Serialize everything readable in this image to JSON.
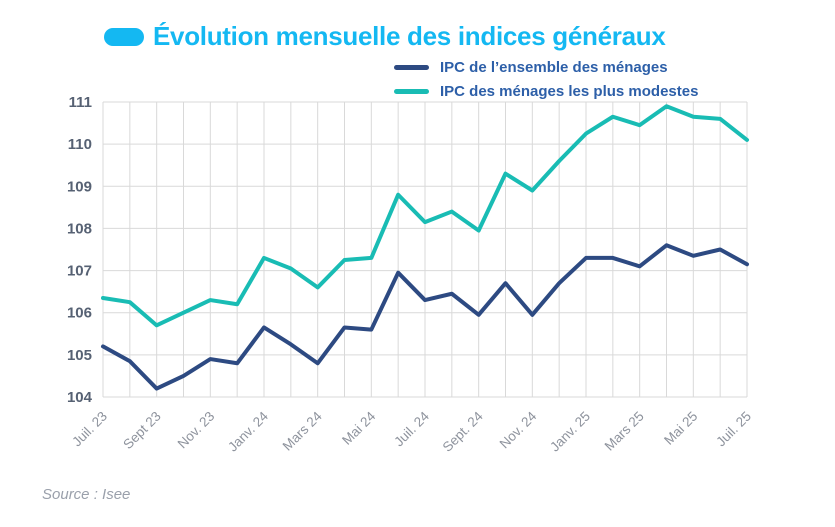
{
  "title": {
    "text": "Évolution mensuelle des indices généraux",
    "color": "#14b8f2"
  },
  "legend": {
    "text_color": "#2d5fa8",
    "items": [
      {
        "label": "IPC de l’ensemble des ménages",
        "color": "#2d4a82"
      },
      {
        "label": "IPC des ménages les plus modestes",
        "color": "#19bcb4"
      }
    ]
  },
  "source": "Source : Isee",
  "colors": {
    "grid": "#d9d9d9",
    "y_label": "#566173",
    "x_label": "#8e939d",
    "source": "#9aa0ab",
    "accent_cyan": "#14b8f2"
  },
  "chart_data": {
    "type": "line",
    "title": "Évolution mensuelle des indices généraux",
    "xlabel": "",
    "ylabel": "",
    "ylim": [
      104,
      111
    ],
    "y_ticks": [
      104,
      105,
      106,
      107,
      108,
      109,
      110,
      111
    ],
    "grid": true,
    "legend_position": "top-right",
    "points_per_tick": 2,
    "x_tick_labels": [
      "Juil. 23",
      "Sept 23",
      "Nov. 23",
      "Janv. 24",
      "Mars 24",
      "Mai 24",
      "Juil. 24",
      "Sept. 24",
      "Nov. 24",
      "Janv. 25",
      "Mars 25",
      "Mai 25",
      "Juil. 25"
    ],
    "series": [
      {
        "name": "IPC de l’ensemble des ménages",
        "color": "#2d4a82",
        "values": [
          105.2,
          104.85,
          104.2,
          104.5,
          104.9,
          104.8,
          105.65,
          105.25,
          104.8,
          105.65,
          105.6,
          106.95,
          106.3,
          106.45,
          105.95,
          106.7,
          105.95,
          106.7,
          107.3,
          107.3,
          107.1,
          107.6,
          107.35,
          107.5,
          107.15
        ]
      },
      {
        "name": "IPC des ménages les plus modestes",
        "color": "#19bcb4",
        "values": [
          106.35,
          106.25,
          105.7,
          106.0,
          106.3,
          106.2,
          107.3,
          107.05,
          106.6,
          107.25,
          107.3,
          108.8,
          108.15,
          108.4,
          107.95,
          109.3,
          108.9,
          109.6,
          110.25,
          110.65,
          110.45,
          110.9,
          110.65,
          110.6,
          110.1
        ]
      }
    ]
  }
}
